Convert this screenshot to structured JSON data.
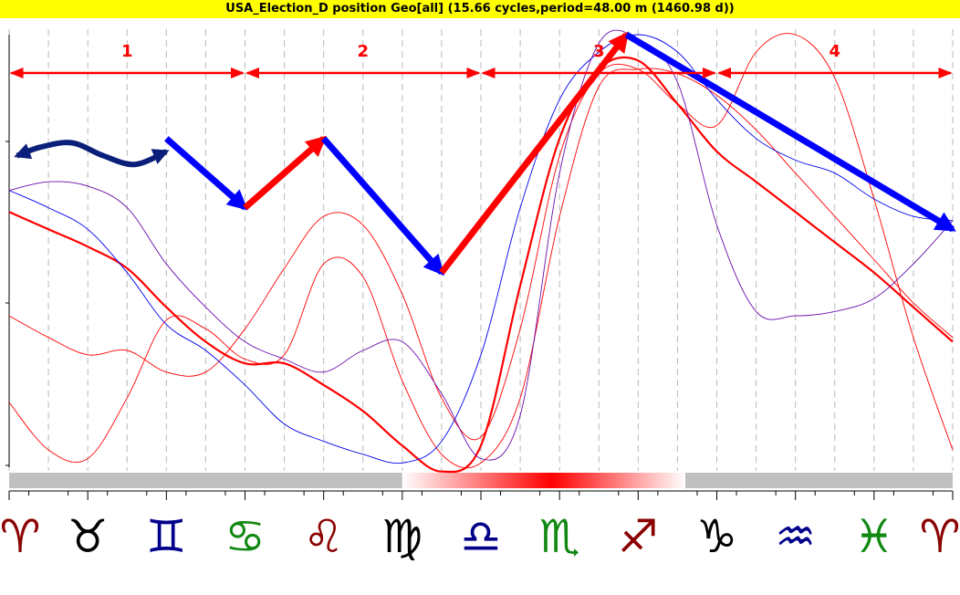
{
  "title": "USA_Election_D position Geo[all]  (15.66 cycles,period=48.00 m (1460.98 d))",
  "colors": {
    "title_bg": "#ffff00",
    "red": "#ff0000",
    "blue": "#0000ee",
    "purple": "#6a0dad",
    "navy": "#0a1f7a",
    "bar_gray": "#c0c0c0"
  },
  "chart_data": {
    "type": "line",
    "x_axis": "zodiac",
    "x_tick_labels": [
      "♈",
      "♉",
      "♊",
      "♋",
      "♌",
      "♍",
      "♎",
      "♏",
      "♐",
      "♑",
      "♒",
      "♓",
      "♈"
    ],
    "x_tick_colors": [
      "#8b0000",
      "#000000",
      "#00008b",
      "#118811",
      "#8b0000",
      "#000000",
      "#00008b",
      "#118811",
      "#8b0000",
      "#000000",
      "#00008b",
      "#118811",
      "#8b0000"
    ],
    "ylim": [
      0,
      1
    ],
    "grid": "vertical-dashed",
    "series": [
      {
        "style": "thick-red",
        "x": [
          0,
          0.5,
          1,
          1.5,
          2,
          2.5,
          3,
          3.5,
          4,
          4.5,
          5,
          5.5,
          6,
          6.5,
          7,
          7.5,
          8,
          8.5,
          9,
          9.5,
          10,
          10.5,
          11,
          11.5,
          12
        ],
        "y": [
          0.59,
          0.55,
          0.51,
          0.46,
          0.37,
          0.29,
          0.24,
          0.24,
          0.19,
          0.13,
          0.05,
          -0.01,
          0.05,
          0.42,
          0.76,
          0.92,
          0.94,
          0.84,
          0.73,
          0.66,
          0.59,
          0.52,
          0.45,
          0.37,
          0.29
        ]
      },
      {
        "style": "thin-red-1",
        "x": [
          0,
          0.5,
          1,
          1.5,
          2,
          2.5,
          3,
          3.5,
          4,
          4.5,
          5,
          5.5,
          6,
          6.5,
          7,
          7.5,
          8,
          8.5,
          9,
          9.5,
          10,
          10.5,
          11,
          11.5,
          12
        ],
        "y": [
          0.15,
          0.04,
          0.02,
          0.16,
          0.34,
          0.32,
          0.25,
          0.26,
          0.47,
          0.44,
          0.2,
          0.03,
          0.01,
          0.16,
          0.58,
          0.88,
          0.92,
          0.91,
          0.86,
          0.78,
          0.68,
          0.58,
          0.48,
          0.38,
          0.3
        ]
      },
      {
        "style": "thin-red-2",
        "x": [
          0,
          0.5,
          1,
          1.5,
          2,
          2.5,
          3,
          3.5,
          4,
          4.5,
          5,
          5.5,
          6,
          6.5,
          7,
          7.5,
          8,
          8.5,
          9,
          9.5,
          10,
          10.5,
          11,
          11.5,
          12
        ],
        "y": [
          0.35,
          0.3,
          0.26,
          0.27,
          0.22,
          0.22,
          0.32,
          0.46,
          0.58,
          0.56,
          0.4,
          0.16,
          0.07,
          0.32,
          0.72,
          0.91,
          0.92,
          0.84,
          0.79,
          0.96,
          1.0,
          0.9,
          0.62,
          0.3,
          0.04
        ]
      },
      {
        "style": "thin-blue",
        "x": [
          0,
          0.5,
          1,
          1.5,
          2,
          2.5,
          3,
          3.5,
          4,
          4.5,
          5,
          5.5,
          6,
          6.5,
          7,
          7.5,
          8,
          8.5,
          9,
          9.5,
          10,
          10.5,
          11,
          11.5,
          12
        ],
        "y": [
          0.64,
          0.6,
          0.55,
          0.45,
          0.33,
          0.27,
          0.19,
          0.1,
          0.06,
          0.03,
          0.01,
          0.06,
          0.26,
          0.6,
          0.85,
          0.96,
          1.0,
          0.96,
          0.85,
          0.76,
          0.71,
          0.68,
          0.62,
          0.58,
          0.57
        ]
      },
      {
        "style": "thin-purple",
        "x": [
          0,
          0.5,
          1,
          1.5,
          2,
          2.5,
          3,
          3.5,
          4,
          4.5,
          5,
          5.5,
          6,
          6.5,
          7,
          7.5,
          8,
          8.5,
          9,
          9.5,
          10,
          10.5,
          11,
          11.5,
          12
        ],
        "y": [
          0.64,
          0.66,
          0.65,
          0.6,
          0.47,
          0.37,
          0.29,
          0.25,
          0.22,
          0.27,
          0.29,
          0.17,
          0.02,
          0.12,
          0.68,
          0.98,
          0.99,
          0.89,
          0.56,
          0.36,
          0.35,
          0.36,
          0.39,
          0.47,
          0.57
        ]
      }
    ],
    "segments": [
      {
        "label": "1",
        "x0": 0,
        "x1": 3
      },
      {
        "label": "2",
        "x0": 3,
        "x1": 6
      },
      {
        "label": "3",
        "x0": 6,
        "x1": 9
      },
      {
        "label": "4",
        "x0": 9,
        "x1": 12
      }
    ],
    "trend_arrows": [
      {
        "color": "#0000ff",
        "points": [
          [
            2,
            0.76
          ],
          [
            3,
            0.6
          ]
        ]
      },
      {
        "color": "#ff0000",
        "points": [
          [
            3,
            0.6
          ],
          [
            4,
            0.76
          ]
        ]
      },
      {
        "color": "#0000ff",
        "points": [
          [
            4,
            0.76
          ],
          [
            5.5,
            0.45
          ]
        ]
      },
      {
        "color": "#ff0000",
        "points": [
          [
            5.5,
            0.45
          ],
          [
            7.85,
            1.0
          ]
        ]
      },
      {
        "color": "#0000ff",
        "points": [
          [
            7.85,
            1.0
          ],
          [
            12,
            0.55
          ]
        ]
      }
    ],
    "wave_arrow": {
      "color": "#0a1f7a",
      "x": [
        0.1,
        0.4,
        0.8,
        1.2,
        1.6,
        2.0
      ],
      "y": [
        0.72,
        0.74,
        0.75,
        0.72,
        0.7,
        0.73
      ]
    },
    "intensity_bar": {
      "hot_from": 5,
      "hot_to": 8.6,
      "peak": 6.9
    }
  }
}
